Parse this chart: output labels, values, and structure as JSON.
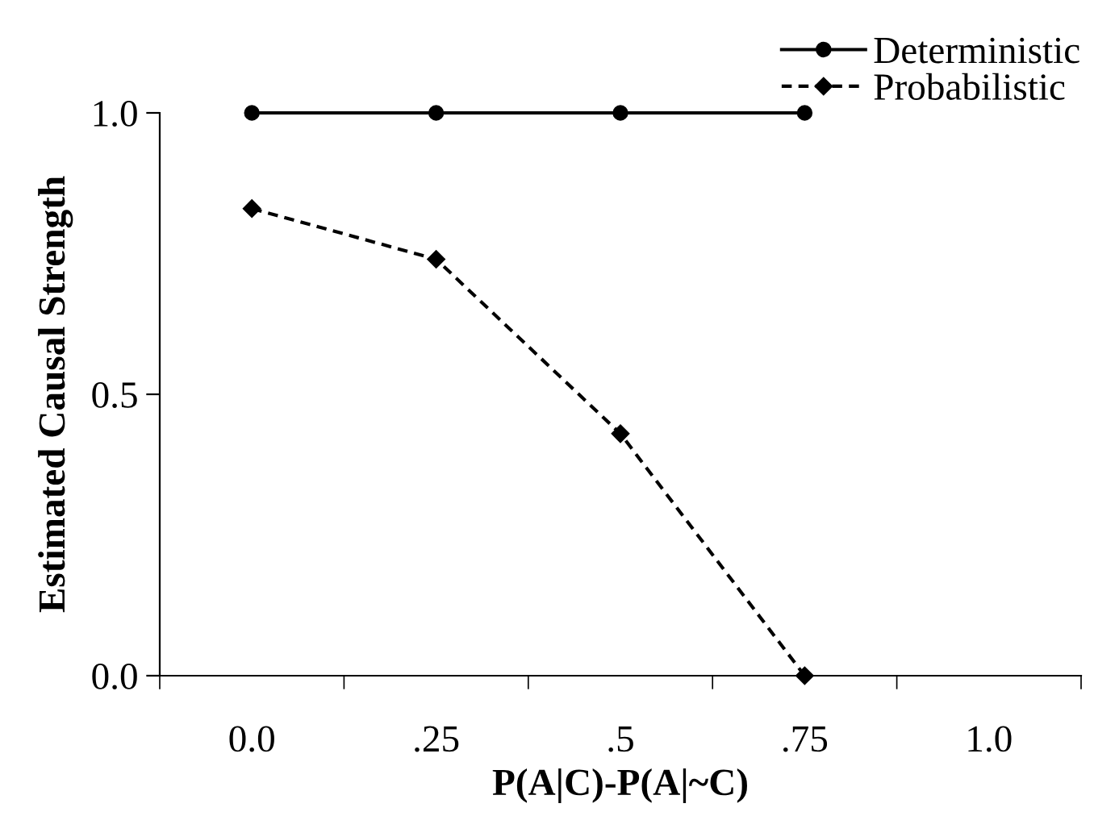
{
  "chart_data": {
    "type": "line",
    "xlabel": "P(A|C)-P(A|~C)",
    "ylabel": "Estimated Causal Strength",
    "categories": [
      "0.0",
      ".25",
      ".5",
      ".75",
      "1.0"
    ],
    "series": [
      {
        "name": "Deterministic",
        "color": "#000000",
        "values": [
          1.0,
          1.0,
          1.0,
          1.0,
          null
        ],
        "marker": "circle",
        "line_style": "solid"
      },
      {
        "name": "Probabilistic",
        "color": "#000000",
        "values": [
          0.83,
          0.74,
          0.43,
          0.0,
          null
        ],
        "marker": "diamond",
        "line_style": "dashed"
      }
    ],
    "ylim": [
      0,
      1
    ],
    "yticks": [
      {
        "value": 0,
        "label": "0.0"
      },
      {
        "value": 0.5,
        "label": "0.5"
      },
      {
        "value": 1,
        "label": "1.0"
      }
    ],
    "grid": false,
    "legend": "top right"
  }
}
